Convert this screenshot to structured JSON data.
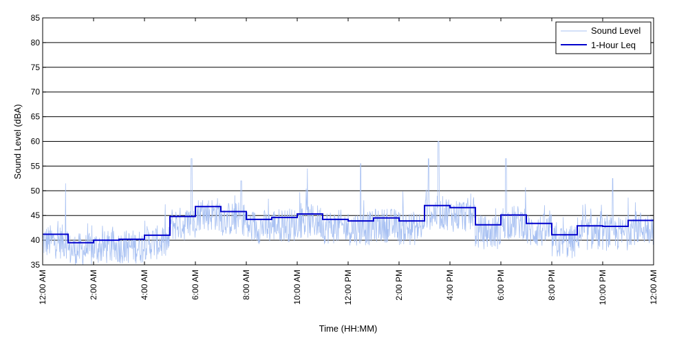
{
  "chart_data": {
    "type": "line",
    "xlabel": "Time (HH:MM)",
    "ylabel": "Sound Level (dBA)",
    "ylim": [
      35,
      85
    ],
    "xlim": [
      0,
      24
    ],
    "yticks": [
      35,
      40,
      45,
      50,
      55,
      60,
      65,
      70,
      75,
      80,
      85
    ],
    "xticks": [
      {
        "hour": 0,
        "label": "12:00 AM"
      },
      {
        "hour": 2,
        "label": "2:00 AM"
      },
      {
        "hour": 4,
        "label": "4:00 AM"
      },
      {
        "hour": 6,
        "label": "6:00 AM"
      },
      {
        "hour": 8,
        "label": "8:00 AM"
      },
      {
        "hour": 10,
        "label": "10:00 AM"
      },
      {
        "hour": 12,
        "label": "12:00 PM"
      },
      {
        "hour": 14,
        "label": "2:00 PM"
      },
      {
        "hour": 16,
        "label": "4:00 PM"
      },
      {
        "hour": 18,
        "label": "6:00 PM"
      },
      {
        "hour": 20,
        "label": "8:00 PM"
      },
      {
        "hour": 22,
        "label": "10:00 PM"
      },
      {
        "hour": 24,
        "label": "12:00 AM"
      }
    ],
    "grid": "horizontal",
    "legend_position": "top-right",
    "series": [
      {
        "name": "Sound Level",
        "color": "#a7c0f2",
        "style": "thin-noisy",
        "spread_db": 3.5,
        "spikes": [
          {
            "hour": 0.9,
            "value": 51.5
          },
          {
            "hour": 5.85,
            "value": 56.5
          },
          {
            "hour": 7.8,
            "value": 52.0
          },
          {
            "hour": 10.4,
            "value": 54.5
          },
          {
            "hour": 12.5,
            "value": 55.5
          },
          {
            "hour": 15.15,
            "value": 56.5
          },
          {
            "hour": 15.55,
            "value": 60.0
          },
          {
            "hour": 18.2,
            "value": 56.5
          },
          {
            "hour": 22.4,
            "value": 52.5
          }
        ]
      },
      {
        "name": "1-Hour Leq",
        "color": "#0000cc",
        "style": "step",
        "values": [
          41.2,
          39.5,
          40.0,
          40.2,
          41.0,
          44.8,
          46.8,
          45.8,
          44.2,
          44.6,
          45.3,
          44.2,
          43.9,
          44.5,
          43.9,
          47.0,
          46.6,
          43.1,
          45.1,
          43.4,
          41.1,
          42.9,
          42.8,
          44.0
        ]
      }
    ]
  }
}
